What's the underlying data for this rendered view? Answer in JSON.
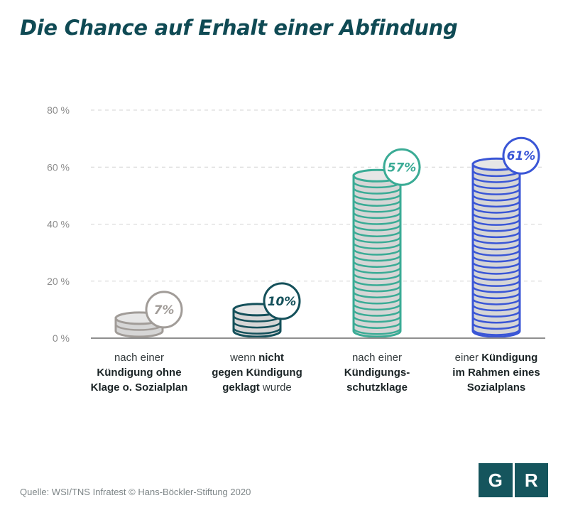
{
  "title": "Die Chance auf Erhalt einer Abfindung",
  "source": "Quelle: WSI/TNS Infratest © Hans-Böckler-Stiftung 2020",
  "logo": {
    "left": "G",
    "right": "R",
    "color": "#15555d"
  },
  "chart_data": {
    "type": "bar",
    "title": "Die Chance auf Erhalt einer Abfindung",
    "ylim": [
      0,
      80
    ],
    "yticks": [
      "0 %",
      "20 %",
      "40 %",
      "60 %",
      "80 %"
    ],
    "grid": true,
    "categories": [
      {
        "parts": [
          {
            "text": "nach einer",
            "bold": false
          },
          {
            "text": "\n",
            "bold": false
          },
          {
            "text": "Kündigung ohne",
            "bold": true
          },
          {
            "text": "\n",
            "bold": false
          },
          {
            "text": "Klage o. Sozialplan",
            "bold": true
          }
        ]
      },
      {
        "parts": [
          {
            "text": "wenn ",
            "bold": false
          },
          {
            "text": "nicht",
            "bold": true
          },
          {
            "text": "\n",
            "bold": false
          },
          {
            "text": "gegen Kündigung",
            "bold": true
          },
          {
            "text": "\n",
            "bold": false
          },
          {
            "text": "geklagt",
            "bold": true
          },
          {
            "text": " wurde",
            "bold": false
          }
        ]
      },
      {
        "parts": [
          {
            "text": "nach einer",
            "bold": false
          },
          {
            "text": "\n",
            "bold": false
          },
          {
            "text": "Kündigungs-",
            "bold": true
          },
          {
            "text": "\n",
            "bold": false
          },
          {
            "text": "schutzklage",
            "bold": true
          }
        ]
      },
      {
        "parts": [
          {
            "text": "einer ",
            "bold": false
          },
          {
            "text": "Kündigung",
            "bold": true
          },
          {
            "text": "\n",
            "bold": false
          },
          {
            "text": "im Rahmen eines",
            "bold": true
          },
          {
            "text": "\n",
            "bold": false
          },
          {
            "text": "Sozialplans",
            "bold": true
          }
        ]
      }
    ],
    "values": [
      7,
      10,
      57,
      61
    ],
    "value_labels": [
      "7%",
      "10%",
      "57%",
      "61%"
    ],
    "colors": [
      "#a19c98",
      "#14505a",
      "#3aab95",
      "#3a56d6"
    ]
  }
}
